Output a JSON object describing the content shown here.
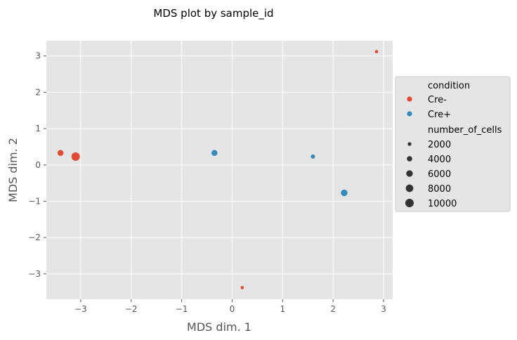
{
  "chart_data": {
    "type": "scatter",
    "title": "MDS plot by sample_id",
    "xlabel": "MDS dim. 1",
    "ylabel": "MDS dim. 2",
    "xlim": [
      -3.68,
      3.18
    ],
    "ylim": [
      -3.7,
      3.42
    ],
    "xticks": [
      -3,
      -2,
      -1,
      0,
      1,
      2,
      3
    ],
    "yticks": [
      -3,
      -2,
      -1,
      0,
      1,
      2,
      3
    ],
    "xtick_labels": [
      "−3",
      "−2",
      "−1",
      "0",
      "1",
      "2",
      "3"
    ],
    "ytick_labels": [
      "−3",
      "−2",
      "−1",
      "0",
      "1",
      "2",
      "3"
    ],
    "grid": true,
    "background": "#e5e5e5",
    "grid_color": "#ffffff",
    "legend_position": "right",
    "legend": {
      "hue_title": "condition",
      "hue_items": [
        {
          "label": "Cre-",
          "color": "#e24a33"
        },
        {
          "label": "Cre+",
          "color": "#348abd"
        }
      ],
      "size_title": "number_of_cells",
      "size_items": [
        {
          "label": "2000",
          "value": 2000
        },
        {
          "label": "4000",
          "value": 4000
        },
        {
          "label": "6000",
          "value": 6000
        },
        {
          "label": "8000",
          "value": 8000
        },
        {
          "label": "10000",
          "value": 10000
        }
      ]
    },
    "series": [
      {
        "name": "Cre-",
        "color": "#e24a33",
        "points": [
          {
            "x": -3.4,
            "y": 0.33,
            "size": 5000
          },
          {
            "x": -3.1,
            "y": 0.23,
            "size": 10000
          },
          {
            "x": 0.2,
            "y": -3.38,
            "size": 1500
          },
          {
            "x": 2.86,
            "y": 3.12,
            "size": 1500
          }
        ]
      },
      {
        "name": "Cre+",
        "color": "#348abd",
        "points": [
          {
            "x": -0.35,
            "y": 0.33,
            "size": 5000
          },
          {
            "x": 1.6,
            "y": 0.23,
            "size": 2500
          },
          {
            "x": 2.22,
            "y": -0.77,
            "size": 6000
          }
        ]
      }
    ]
  }
}
